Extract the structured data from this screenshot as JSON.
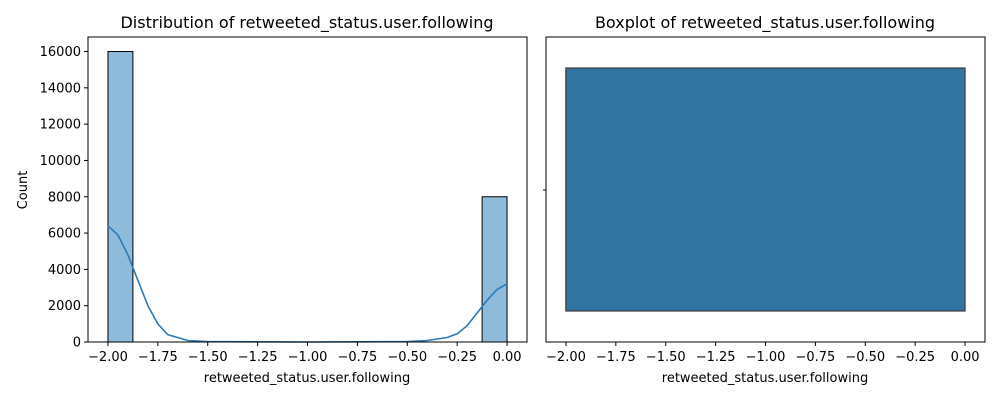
{
  "chart_data": [
    {
      "type": "histogram",
      "title": "Distribution of retweeted_status.user.following",
      "xlabel": "retweeted_status.user.following",
      "ylabel": "Count",
      "xlim": [
        -2.1,
        0.1
      ],
      "ylim": [
        0,
        16800
      ],
      "x_ticks": [
        -2.0,
        -1.75,
        -1.5,
        -1.25,
        -1.0,
        -0.75,
        -0.5,
        -0.25,
        0.0
      ],
      "x_tick_labels": [
        "−2.00",
        "−1.75",
        "−1.50",
        "−1.25",
        "−1.00",
        "−0.75",
        "−0.50",
        "−0.25",
        "0.00"
      ],
      "y_ticks": [
        0,
        2000,
        4000,
        6000,
        8000,
        10000,
        12000,
        14000,
        16000
      ],
      "y_tick_labels": [
        "0",
        "2000",
        "4000",
        "6000",
        "8000",
        "10000",
        "12000",
        "14000",
        "16000"
      ],
      "bins": [
        {
          "x0": -2.0,
          "x1": -1.875,
          "count": 16000
        },
        {
          "x0": -0.125,
          "x1": 0.0,
          "count": 8000
        }
      ],
      "kde": {
        "x": [
          -2.0,
          -1.95,
          -1.9,
          -1.85,
          -1.8,
          -1.75,
          -1.7,
          -1.6,
          -1.5,
          -1.0,
          -0.5,
          -0.4,
          -0.3,
          -0.25,
          -0.2,
          -0.15,
          -0.1,
          -0.05,
          0.0
        ],
        "y": [
          6400,
          5900,
          4800,
          3400,
          2000,
          1000,
          400,
          80,
          20,
          0,
          20,
          80,
          250,
          450,
          900,
          1600,
          2300,
          2900,
          3200
        ]
      },
      "bar_color": "#8fbbdb",
      "line_color": "#2b7bba"
    },
    {
      "type": "boxplot",
      "title": "Boxplot of retweeted_status.user.following",
      "xlabel": "retweeted_status.user.following",
      "xlim": [
        -2.1,
        0.1
      ],
      "x_ticks": [
        -2.0,
        -1.75,
        -1.5,
        -1.25,
        -1.0,
        -0.75,
        -0.5,
        -0.25,
        0.0
      ],
      "x_tick_labels": [
        "−2.00",
        "−1.75",
        "−1.50",
        "−1.25",
        "−1.00",
        "−0.75",
        "−0.50",
        "−0.25",
        "0.00"
      ],
      "box": {
        "min": -2.0,
        "q1": -2.0,
        "median": -2.0,
        "q3": 0.0,
        "max": 0.0
      },
      "box_color": "#3274a1"
    }
  ]
}
